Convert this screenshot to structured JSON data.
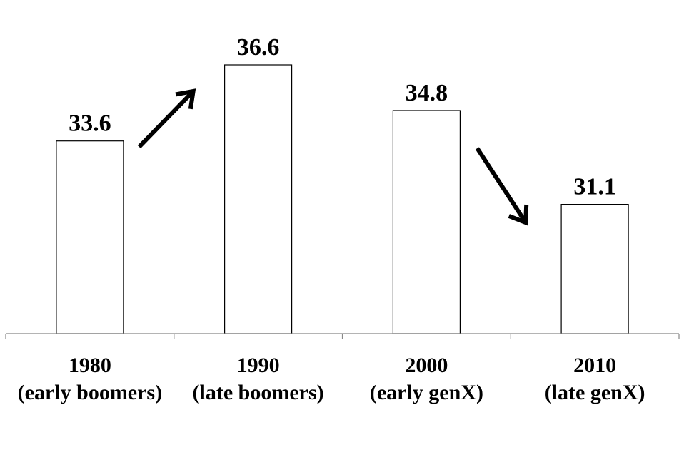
{
  "chart_data": {
    "type": "bar",
    "categories": [
      [
        "1980",
        "(early boomers)"
      ],
      [
        "1990",
        "(late boomers)"
      ],
      [
        "2000",
        "(early genX)"
      ],
      [
        "2010",
        "(late genX)"
      ]
    ],
    "values": [
      33.6,
      36.6,
      34.8,
      31.1
    ],
    "value_labels": [
      "33.6",
      "36.6",
      "34.8",
      "31.1"
    ],
    "title": "",
    "xlabel": "",
    "ylabel": "",
    "ylim": [
      26,
      37.5
    ],
    "grid": false,
    "legend": "none",
    "bar_fill": "#ffffff",
    "bar_stroke": "#000000",
    "annotations": [
      {
        "type": "arrow",
        "direction": "up",
        "between": [
          "1980",
          "1990"
        ]
      },
      {
        "type": "arrow",
        "direction": "down",
        "between": [
          "2000",
          "2010"
        ]
      }
    ]
  }
}
